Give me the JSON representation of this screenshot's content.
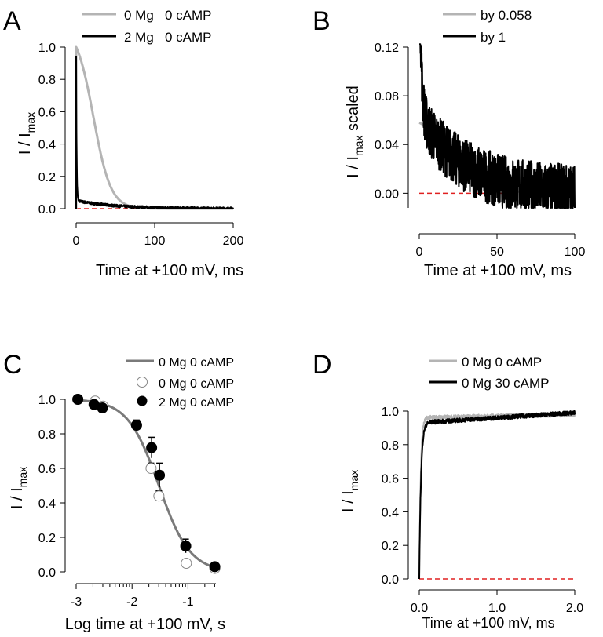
{
  "chart_data": [
    {
      "panel": "A",
      "type": "line",
      "xlabel": "Time at +100 mV, ms",
      "ylabel_main": "I / I",
      "ylabel_sub": "max",
      "ylabel_suffix": "",
      "xlim": [
        0,
        200
      ],
      "ylim": [
        0,
        1.0
      ],
      "xticks": [
        0,
        100,
        200
      ],
      "yticks": [
        "0.0",
        "0.2",
        "0.4",
        "0.6",
        "0.8",
        "1.0"
      ],
      "reference_line": {
        "y": 0,
        "color": "#e02020",
        "style": "dashed"
      },
      "series": [
        {
          "name": "0 Mg   0 cAMP",
          "color": "#b4b4b4",
          "model": "sigmoid_decay",
          "params": {
            "a": 1.0,
            "t0": 22,
            "k": 11,
            "start": 1.0
          }
        },
        {
          "name": "2 Mg   0 cAMP",
          "color": "#000000",
          "model": "fast_decay",
          "params": {
            "fast": 0.9,
            "tau_fast": 0.6,
            "slow": 0.05,
            "tau_slow": 50,
            "noise": 0.008
          }
        }
      ]
    },
    {
      "panel": "B",
      "type": "line",
      "xlabel": "Time at +100 mV, ms",
      "ylabel_main": "I / I",
      "ylabel_sub": "max",
      "ylabel_suffix": " scaled",
      "xlim": [
        0,
        100
      ],
      "ylim": [
        -0.012,
        0.12
      ],
      "xticks": [
        0,
        50,
        100
      ],
      "yticks": [
        "0.00",
        "0.04",
        "0.08",
        "0.12"
      ],
      "reference_line": {
        "y": 0,
        "color": "#e02020",
        "style": "dashed"
      },
      "series": [
        {
          "name": "by 0.058",
          "color": "#b4b4b4",
          "model": "scaled_sigmoid",
          "params": {
            "a": 0.058,
            "t0": 22,
            "k": 11
          }
        },
        {
          "name": "by 1",
          "color": "#000000",
          "model": "noisy_decay",
          "params": {
            "a": 0.14,
            "tau1": 1.2,
            "b": 0.065,
            "tau2": 28,
            "noise": 0.011
          }
        }
      ]
    },
    {
      "panel": "C",
      "type": "scatter",
      "xlabel": "Log time at +100 mV, s",
      "ylabel_main": "I / I",
      "ylabel_sub": "max",
      "ylabel_suffix": "",
      "xlim": [
        -3,
        -0.5
      ],
      "ylim": [
        0,
        1.0
      ],
      "xticks": [
        -3,
        -2,
        -1
      ],
      "yticks": [
        "0.0",
        "0.2",
        "0.4",
        "0.6",
        "0.8",
        "1.0"
      ],
      "series": [
        {
          "name": "0 Mg 0 cAMP",
          "kind": "line",
          "color": "#7a7a7a",
          "model": "hill",
          "params": {
            "x50": -1.52,
            "slope": 3.6
          }
        },
        {
          "name": "0 Mg 0 cAMP",
          "kind": "open",
          "points": [
            {
              "x": -2.97,
              "y": 1.0,
              "err": 0.01
            },
            {
              "x": -2.66,
              "y": 0.99,
              "err": 0.01
            },
            {
              "x": -2.52,
              "y": 0.96,
              "err": 0.01
            },
            {
              "x": -1.92,
              "y": 0.85,
              "err": 0.02
            },
            {
              "x": -1.66,
              "y": 0.6,
              "err": 0.03
            },
            {
              "x": -1.52,
              "y": 0.44,
              "err": 0.03
            },
            {
              "x": -1.03,
              "y": 0.05,
              "err": 0.02
            },
            {
              "x": -0.52,
              "y": 0.02,
              "err": 0.01
            }
          ]
        },
        {
          "name": "2 Mg 0 cAMP",
          "kind": "filled",
          "points": [
            {
              "x": -2.97,
              "y": 1.0,
              "err": 0.01
            },
            {
              "x": -2.68,
              "y": 0.97,
              "err": 0.01
            },
            {
              "x": -2.53,
              "y": 0.95,
              "err": 0.01
            },
            {
              "x": -1.92,
              "y": 0.85,
              "err": 0.03
            },
            {
              "x": -1.65,
              "y": 0.72,
              "err": 0.06
            },
            {
              "x": -1.51,
              "y": 0.56,
              "err": 0.07
            },
            {
              "x": -1.04,
              "y": 0.15,
              "err": 0.04
            },
            {
              "x": -0.52,
              "y": 0.03,
              "err": 0.01
            }
          ]
        }
      ]
    },
    {
      "panel": "D",
      "type": "line",
      "xlabel": "Time at +100 mV, ms",
      "ylabel_main": "I / I",
      "ylabel_sub": "max",
      "ylabel_suffix": "",
      "xlim": [
        0,
        2.0
      ],
      "ylim": [
        0,
        1.0
      ],
      "xticks": [
        "0.0",
        "1.0",
        "2.0"
      ],
      "yticks": [
        "0.0",
        "0.2",
        "0.4",
        "0.6",
        "0.8",
        "1.0"
      ],
      "reference_line": {
        "y": 0,
        "color": "#e02020",
        "style": "dashed"
      },
      "series": [
        {
          "name": "0 Mg 0 cAMP",
          "color": "#b4b4b4",
          "model": "rise",
          "params": {
            "tau": 0.018,
            "plateau": 0.96,
            "slow": 0.02,
            "noise": 0.012
          }
        },
        {
          "name": "0 Mg 30 cAMP",
          "color": "#000000",
          "model": "rise",
          "params": {
            "tau": 0.022,
            "plateau": 0.93,
            "slow": 0.06,
            "noise": 0.012
          }
        }
      ]
    }
  ]
}
